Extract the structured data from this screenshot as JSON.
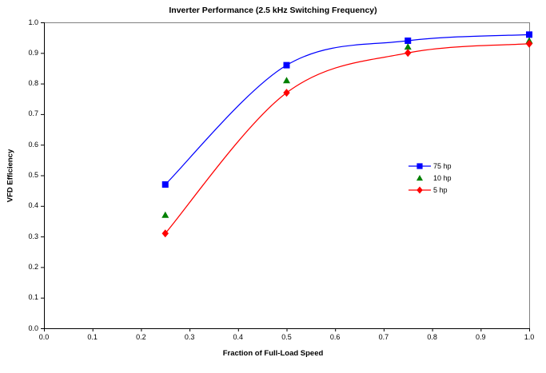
{
  "chart_data": {
    "type": "line",
    "title": "Inverter Performance (2.5 kHz Switching Frequency)",
    "xlabel": "Fraction of Full-Load Speed",
    "ylabel": "VFD Efficiency",
    "xlim": [
      0.0,
      1.0
    ],
    "ylim": [
      0.0,
      1.0
    ],
    "xticks": [
      0.0,
      0.1,
      0.2,
      0.3,
      0.4,
      0.5,
      0.6,
      0.7,
      0.8,
      0.9,
      1.0
    ],
    "yticks": [
      0.0,
      0.1,
      0.2,
      0.3,
      0.4,
      0.5,
      0.6,
      0.7,
      0.8,
      0.9,
      1.0
    ],
    "x": [
      0.25,
      0.5,
      0.75,
      1.0
    ],
    "series": [
      {
        "name": "75 hp",
        "color": "#0000ff",
        "marker": "square",
        "line": true,
        "values": [
          0.47,
          0.86,
          0.94,
          0.96
        ]
      },
      {
        "name": "10 hp",
        "color": "#008000",
        "marker": "triangle",
        "line": false,
        "values": [
          0.37,
          0.81,
          0.92,
          0.94
        ]
      },
      {
        "name": "5 hp",
        "color": "#ff0000",
        "marker": "diamond",
        "line": true,
        "values": [
          0.31,
          0.77,
          0.9,
          0.93
        ]
      }
    ],
    "grid": false,
    "legend_position": "inside-right-center",
    "box_color": "#808080",
    "axis_color": "#000000",
    "background_color": "#ffffff"
  }
}
